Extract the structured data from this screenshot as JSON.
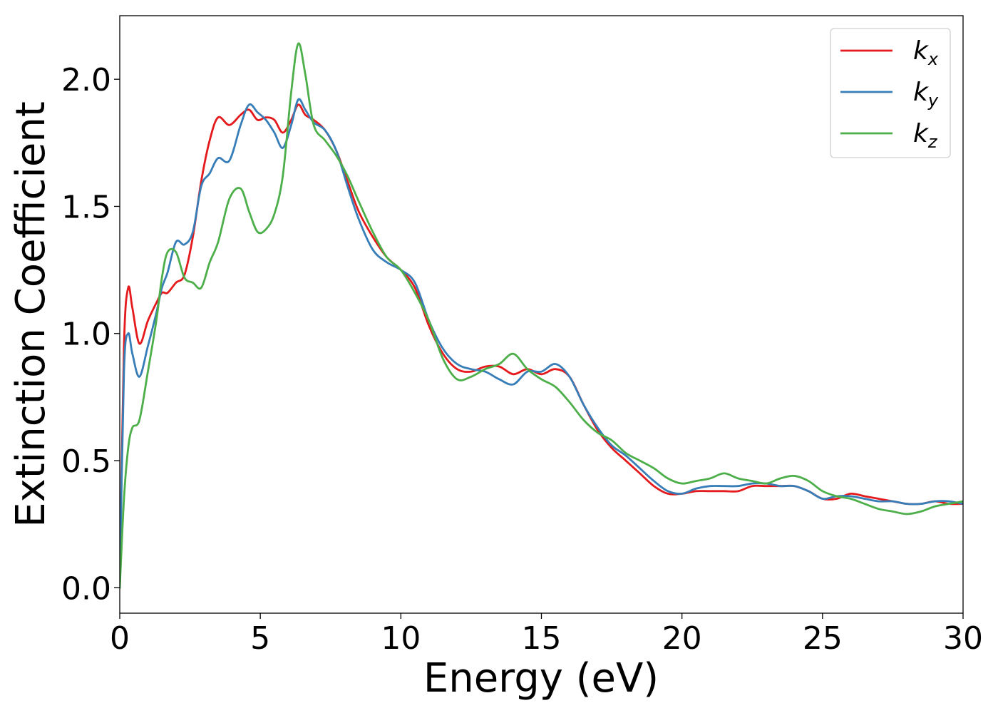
{
  "colors": {
    "kx": "#e41a1c",
    "ky": "#377eb8",
    "kz": "#4daf4a"
  },
  "chart_data": {
    "type": "line",
    "title": "",
    "xlabel": "Energy (eV)",
    "ylabel": "Extinction Coefficient",
    "xlim": [
      0,
      30
    ],
    "ylim": [
      -0.1,
      2.25
    ],
    "xticks": [
      0,
      5,
      10,
      15,
      20,
      25,
      30
    ],
    "xtick_labels": [
      "0",
      "5",
      "10",
      "15",
      "20",
      "25",
      "30"
    ],
    "yticks": [
      0.0,
      0.5,
      1.0,
      1.5,
      2.0
    ],
    "ytick_labels": [
      "0.0",
      "0.5",
      "1.0",
      "1.5",
      "2.0"
    ],
    "grid": false,
    "legend_position": "top-right",
    "series": [
      {
        "name": "k_x",
        "legend_main": "k",
        "legend_sub": "x",
        "color_key": "kx",
        "x": [
          0,
          0.15,
          0.3,
          0.45,
          0.7,
          1.0,
          1.3,
          1.5,
          1.7,
          2.0,
          2.3,
          2.6,
          2.9,
          3.2,
          3.5,
          3.9,
          4.3,
          4.6,
          4.9,
          5.2,
          5.5,
          5.8,
          6.1,
          6.35,
          6.6,
          6.9,
          7.3,
          7.7,
          8.1,
          8.5,
          9.0,
          9.5,
          10.0,
          10.5,
          11.0,
          11.5,
          12.0,
          12.5,
          13.0,
          13.5,
          14.0,
          14.5,
          15.0,
          15.5,
          16.0,
          16.5,
          17.0,
          17.5,
          18.0,
          18.5,
          19.0,
          19.5,
          20.0,
          20.5,
          21.0,
          21.5,
          22.0,
          22.5,
          23.0,
          23.5,
          24.0,
          24.5,
          25.0,
          25.5,
          26.0,
          26.5,
          27.0,
          27.5,
          28.0,
          28.5,
          29.0,
          29.5,
          30.0
        ],
        "y": [
          0.0,
          0.95,
          1.18,
          1.1,
          0.96,
          1.05,
          1.12,
          1.16,
          1.16,
          1.2,
          1.23,
          1.38,
          1.6,
          1.76,
          1.85,
          1.82,
          1.86,
          1.88,
          1.84,
          1.85,
          1.84,
          1.79,
          1.84,
          1.9,
          1.86,
          1.84,
          1.8,
          1.72,
          1.6,
          1.48,
          1.38,
          1.3,
          1.25,
          1.18,
          1.03,
          0.92,
          0.86,
          0.85,
          0.87,
          0.87,
          0.84,
          0.86,
          0.84,
          0.86,
          0.83,
          0.72,
          0.62,
          0.55,
          0.5,
          0.45,
          0.4,
          0.37,
          0.37,
          0.38,
          0.38,
          0.38,
          0.38,
          0.4,
          0.4,
          0.4,
          0.4,
          0.38,
          0.35,
          0.35,
          0.37,
          0.36,
          0.35,
          0.34,
          0.33,
          0.33,
          0.34,
          0.33,
          0.33
        ]
      },
      {
        "name": "k_y",
        "legend_main": "k",
        "legend_sub": "y",
        "color_key": "ky",
        "x": [
          0,
          0.15,
          0.3,
          0.45,
          0.7,
          1.0,
          1.3,
          1.5,
          1.7,
          2.0,
          2.3,
          2.6,
          2.9,
          3.2,
          3.5,
          3.9,
          4.3,
          4.6,
          4.9,
          5.2,
          5.5,
          5.8,
          6.1,
          6.35,
          6.6,
          6.9,
          7.3,
          7.7,
          8.1,
          8.5,
          9.0,
          9.5,
          10.0,
          10.5,
          11.0,
          11.5,
          12.0,
          12.5,
          13.0,
          13.5,
          14.0,
          14.5,
          15.0,
          15.5,
          16.0,
          16.5,
          17.0,
          17.5,
          18.0,
          18.5,
          19.0,
          19.5,
          20.0,
          20.5,
          21.0,
          21.5,
          22.0,
          22.5,
          23.0,
          23.5,
          24.0,
          24.5,
          25.0,
          25.5,
          26.0,
          26.5,
          27.0,
          27.5,
          28.0,
          28.5,
          29.0,
          29.5,
          30.0
        ],
        "y": [
          0.0,
          0.85,
          1.0,
          0.92,
          0.83,
          0.95,
          1.08,
          1.18,
          1.24,
          1.36,
          1.35,
          1.4,
          1.58,
          1.63,
          1.69,
          1.68,
          1.82,
          1.9,
          1.87,
          1.84,
          1.79,
          1.73,
          1.82,
          1.92,
          1.88,
          1.83,
          1.8,
          1.72,
          1.58,
          1.45,
          1.33,
          1.28,
          1.25,
          1.2,
          1.05,
          0.94,
          0.88,
          0.86,
          0.85,
          0.82,
          0.8,
          0.85,
          0.85,
          0.88,
          0.83,
          0.72,
          0.63,
          0.56,
          0.52,
          0.47,
          0.42,
          0.38,
          0.37,
          0.39,
          0.4,
          0.4,
          0.4,
          0.41,
          0.41,
          0.4,
          0.4,
          0.38,
          0.35,
          0.36,
          0.36,
          0.35,
          0.34,
          0.34,
          0.33,
          0.33,
          0.34,
          0.34,
          0.33
        ]
      },
      {
        "name": "k_z",
        "legend_main": "k",
        "legend_sub": "z",
        "color_key": "kz",
        "x": [
          0,
          0.15,
          0.3,
          0.45,
          0.7,
          1.0,
          1.3,
          1.5,
          1.7,
          2.0,
          2.3,
          2.6,
          2.9,
          3.2,
          3.5,
          3.9,
          4.3,
          4.6,
          4.9,
          5.2,
          5.5,
          5.8,
          6.1,
          6.35,
          6.6,
          6.9,
          7.3,
          7.7,
          8.1,
          8.5,
          9.0,
          9.5,
          10.0,
          10.5,
          11.0,
          11.5,
          12.0,
          12.5,
          13.0,
          13.5,
          14.0,
          14.5,
          15.0,
          15.5,
          16.0,
          16.5,
          17.0,
          17.5,
          18.0,
          18.5,
          19.0,
          19.5,
          20.0,
          20.5,
          21.0,
          21.5,
          22.0,
          22.5,
          23.0,
          23.5,
          24.0,
          24.5,
          25.0,
          25.5,
          26.0,
          26.5,
          27.0,
          27.5,
          28.0,
          28.5,
          29.0,
          29.5,
          30.0
        ],
        "y": [
          0.0,
          0.35,
          0.55,
          0.63,
          0.66,
          0.85,
          1.05,
          1.22,
          1.32,
          1.32,
          1.22,
          1.2,
          1.18,
          1.28,
          1.36,
          1.53,
          1.57,
          1.48,
          1.4,
          1.41,
          1.47,
          1.62,
          1.95,
          2.14,
          2.02,
          1.82,
          1.76,
          1.7,
          1.62,
          1.52,
          1.4,
          1.3,
          1.25,
          1.16,
          1.05,
          0.9,
          0.82,
          0.83,
          0.86,
          0.88,
          0.92,
          0.86,
          0.82,
          0.79,
          0.73,
          0.66,
          0.61,
          0.58,
          0.53,
          0.5,
          0.47,
          0.43,
          0.41,
          0.42,
          0.43,
          0.45,
          0.43,
          0.42,
          0.41,
          0.43,
          0.44,
          0.42,
          0.38,
          0.36,
          0.35,
          0.33,
          0.31,
          0.3,
          0.29,
          0.3,
          0.32,
          0.33,
          0.34
        ]
      }
    ]
  }
}
